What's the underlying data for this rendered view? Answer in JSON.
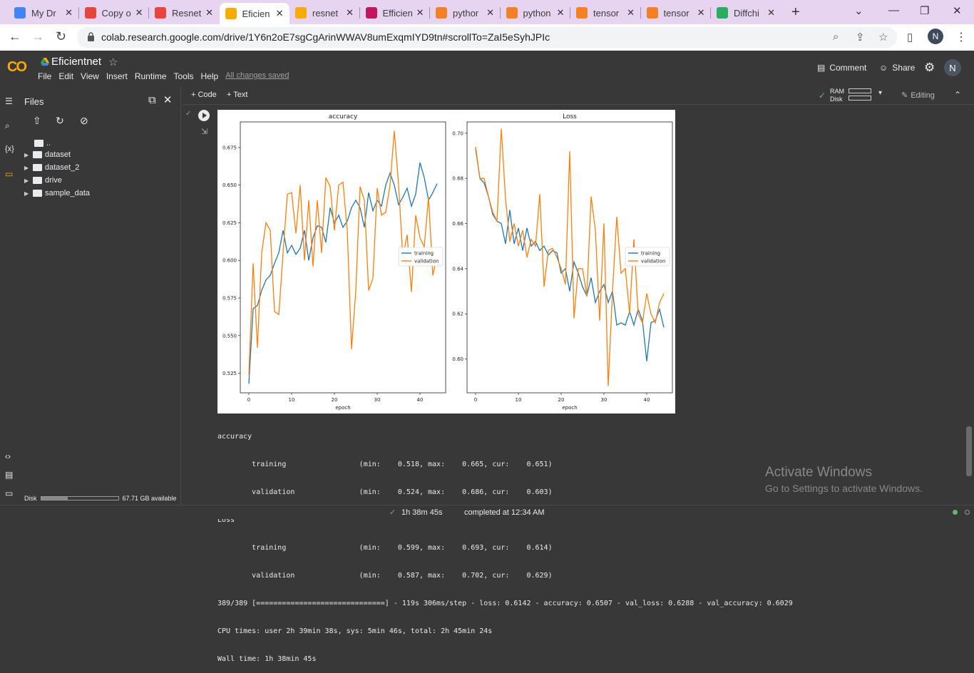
{
  "browser": {
    "tabs": [
      {
        "label": "My Dr",
        "icon": "google-drive-icon",
        "color": "#4285f4"
      },
      {
        "label": "Copy o",
        "icon": "colab-icon",
        "color": "#e8453c"
      },
      {
        "label": "Resnet",
        "icon": "colab-icon",
        "color": "#e8453c"
      },
      {
        "label": "Eficien",
        "icon": "colab-icon",
        "color": "#f9ab00",
        "active": true
      },
      {
        "label": "resnet",
        "icon": "colab-icon",
        "color": "#f9ab00"
      },
      {
        "label": "Efficien",
        "icon": "kaggle-icon",
        "color": "#c2185b"
      },
      {
        "label": "pythor",
        "icon": "stackoverflow-icon",
        "color": "#f48024"
      },
      {
        "label": "python",
        "icon": "stackoverflow-icon",
        "color": "#f48024"
      },
      {
        "label": "tensor",
        "icon": "stackoverflow-icon",
        "color": "#f48024"
      },
      {
        "label": "tensor",
        "icon": "stackoverflow-icon",
        "color": "#f48024"
      },
      {
        "label": "Diffchi",
        "icon": "diffchecker-icon",
        "color": "#27ae60"
      }
    ],
    "url": "colab.research.google.com/drive/1Y6n2oE7sgCgArinWWAV8umExqmIYD9tn#scrollTo=ZaI5eSyhJPIc",
    "profile_initial": "N"
  },
  "colab": {
    "notebook_title": "Eficientnet",
    "menu": [
      "File",
      "Edit",
      "View",
      "Insert",
      "Runtime",
      "Tools",
      "Help"
    ],
    "saved_status": "All changes saved",
    "comment_label": "Comment",
    "share_label": "Share",
    "avatar_initial": "N",
    "add_code": "+ Code",
    "add_text": "+ Text",
    "ram_label": "RAM",
    "disk_label": "Disk",
    "editing_label": "Editing"
  },
  "files": {
    "title": "Files",
    "parent": "..",
    "items": [
      "dataset",
      "dataset_2",
      "drive",
      "sample_data"
    ],
    "disk_label": "Disk",
    "disk_available": "67.71 GB available",
    "disk_used_fraction": 0.35
  },
  "output": {
    "lines": [
      "accuracy",
      "\ttraining             \t (min:    0.518, max:    0.665, cur:    0.651)",
      "\tvalidation           \t (min:    0.524, max:    0.686, cur:    0.603)",
      "Loss",
      "\ttraining             \t (min:    0.599, max:    0.693, cur:    0.614)",
      "\tvalidation           \t (min:    0.587, max:    0.702, cur:    0.629)",
      "389/389 [==============================] - 119s 306ms/step - loss: 0.6142 - accuracy: 0.6507 - val_loss: 0.6288 - val_accuracy: 0.6029",
      "CPU times: user 2h 39min 38s, sys: 5min 46s, total: 2h 45min 24s",
      "Wall time: 1h 38min 45s"
    ]
  },
  "watermark": {
    "line1": "Activate Windows",
    "line2": "Go to Settings to activate Windows."
  },
  "status": {
    "duration": "1h 38m 45s",
    "completed": "completed at 12:34 AM"
  },
  "chart_data": [
    {
      "type": "line",
      "title": "accuracy",
      "xlabel": "epoch",
      "ylabel": "",
      "xlim": [
        -2,
        46
      ],
      "ylim": [
        0.512,
        0.692
      ],
      "xticks": [
        0,
        10,
        20,
        30,
        40
      ],
      "yticks": [
        0.525,
        0.55,
        0.575,
        0.6,
        0.625,
        0.65,
        0.675
      ],
      "legend": "center-right",
      "series": [
        {
          "name": "training",
          "color": "#1f77b4",
          "values": [
            0.518,
            0.568,
            0.57,
            0.58,
            0.587,
            0.59,
            0.598,
            0.605,
            0.62,
            0.605,
            0.61,
            0.604,
            0.608,
            0.62,
            0.6,
            0.615,
            0.623,
            0.622,
            0.612,
            0.635,
            0.625,
            0.63,
            0.622,
            0.626,
            0.635,
            0.64,
            0.635,
            0.622,
            0.645,
            0.633,
            0.64,
            0.636,
            0.65,
            0.658,
            0.65,
            0.637,
            0.642,
            0.648,
            0.636,
            0.644,
            0.665,
            0.655,
            0.64,
            0.645,
            0.651
          ]
        },
        {
          "name": "validation",
          "color": "#ff7f0e",
          "values": [
            0.524,
            0.598,
            0.542,
            0.605,
            0.625,
            0.62,
            0.566,
            0.564,
            0.605,
            0.644,
            0.645,
            0.618,
            0.65,
            0.6,
            0.64,
            0.596,
            0.64,
            0.605,
            0.655,
            0.649,
            0.62,
            0.65,
            0.652,
            0.62,
            0.541,
            0.58,
            0.649,
            0.64,
            0.58,
            0.588,
            0.648,
            0.63,
            0.632,
            0.65,
            0.686,
            0.65,
            0.602,
            0.617,
            0.579,
            0.63,
            0.615,
            0.609,
            0.642,
            0.59,
            0.603
          ]
        }
      ]
    },
    {
      "type": "line",
      "title": "Loss",
      "xlabel": "epoch",
      "ylabel": "",
      "xlim": [
        -2,
        46
      ],
      "ylim": [
        0.585,
        0.705
      ],
      "xticks": [
        0,
        10,
        20,
        30,
        40
      ],
      "yticks": [
        0.6,
        0.62,
        0.64,
        0.66,
        0.68,
        0.7
      ],
      "legend": "center-right",
      "series": [
        {
          "name": "training",
          "color": "#1f77b4",
          "values": [
            0.693,
            0.68,
            0.678,
            0.672,
            0.664,
            0.661,
            0.66,
            0.651,
            0.666,
            0.651,
            0.658,
            0.648,
            0.658,
            0.65,
            0.652,
            0.648,
            0.65,
            0.646,
            0.648,
            0.647,
            0.638,
            0.64,
            0.63,
            0.643,
            0.638,
            0.632,
            0.628,
            0.636,
            0.625,
            0.63,
            0.633,
            0.625,
            0.63,
            0.615,
            0.616,
            0.615,
            0.621,
            0.615,
            0.622,
            0.617,
            0.599,
            0.616,
            0.617,
            0.622,
            0.614
          ]
        },
        {
          "name": "validation",
          "color": "#ff7f0e",
          "values": [
            0.694,
            0.68,
            0.68,
            0.672,
            0.665,
            0.661,
            0.702,
            0.671,
            0.652,
            0.66,
            0.65,
            0.657,
            0.645,
            0.653,
            0.65,
            0.673,
            0.632,
            0.648,
            0.649,
            0.645,
            0.64,
            0.633,
            0.692,
            0.618,
            0.64,
            0.64,
            0.628,
            0.672,
            0.657,
            0.617,
            0.66,
            0.588,
            0.63,
            0.663,
            0.638,
            0.64,
            0.62,
            0.653,
            0.62,
            0.616,
            0.629,
            0.62,
            0.616,
            0.625,
            0.629
          ]
        }
      ]
    }
  ]
}
